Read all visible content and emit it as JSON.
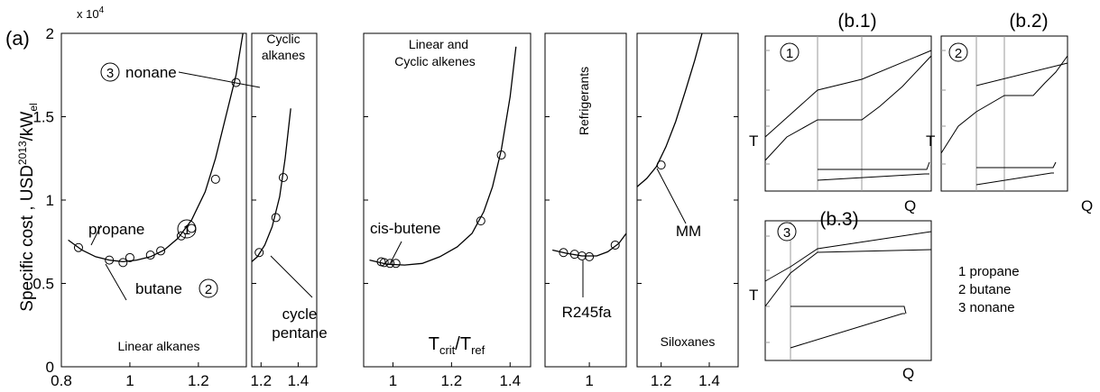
{
  "chart_data": [
    {
      "type": "line",
      "panel_label": "(a)",
      "ylabel": "Specific cost , USD",
      "ylabel_sup": "2013",
      "ylabel_suffix": "/kW",
      "ylabel_sub": "el",
      "y_multiplier": "x 10",
      "y_multiplier_exp": "4",
      "xlabel": "T",
      "xlabel_sub1": "crit",
      "xlabel_mid": "/T",
      "xlabel_sub2": "ref",
      "ylim": [
        0,
        2
      ],
      "yticks": [
        "0",
        "0.5",
        "1",
        "1.5",
        "2"
      ],
      "subpanels": [
        {
          "name": "Linear alkanes",
          "xlim": [
            0.8,
            1.34
          ],
          "xticks": [
            "0.8",
            "1",
            "1.2"
          ],
          "curve": [
            [
              0.82,
              0.76
            ],
            [
              0.86,
              0.7
            ],
            [
              0.9,
              0.66
            ],
            [
              0.94,
              0.64
            ],
            [
              0.98,
              0.63
            ],
            [
              1.02,
              0.64
            ],
            [
              1.06,
              0.66
            ],
            [
              1.1,
              0.7
            ],
            [
              1.14,
              0.77
            ],
            [
              1.18,
              0.88
            ],
            [
              1.22,
              1.05
            ],
            [
              1.25,
              1.25
            ],
            [
              1.28,
              1.5
            ],
            [
              1.31,
              1.75
            ],
            [
              1.33,
              2.0
            ]
          ],
          "points": [
            [
              0.85,
              0.715
            ],
            [
              0.94,
              0.64
            ],
            [
              0.98,
              0.625
            ],
            [
              1.0,
              0.655
            ],
            [
              1.06,
              0.67
            ],
            [
              1.09,
              0.695
            ],
            [
              1.15,
              0.785
            ],
            [
              1.18,
              0.83
            ],
            [
              1.25,
              1.125
            ],
            [
              1.31,
              1.705
            ]
          ],
          "annotations": [
            "propane",
            "butane",
            "nonane"
          ],
          "markers": [
            "1",
            "2",
            "3"
          ]
        },
        {
          "name": "Cyclic alkanes",
          "name_lines": [
            "Cyclic",
            "alkanes"
          ],
          "xlim": [
            1.15,
            1.5
          ],
          "xticks": [
            "1.2",
            "1.4"
          ],
          "curve": [
            [
              1.15,
              0.63
            ],
            [
              1.18,
              0.66
            ],
            [
              1.22,
              0.73
            ],
            [
              1.26,
              0.84
            ],
            [
              1.3,
              1.02
            ],
            [
              1.33,
              1.25
            ],
            [
              1.36,
              1.55
            ]
          ],
          "points": [
            [
              1.19,
              0.685
            ],
            [
              1.28,
              0.895
            ],
            [
              1.32,
              1.135
            ]
          ],
          "annotations": [
            "cycle",
            "pentane"
          ]
        },
        {
          "name": "Linear and Cyclic alkenes",
          "name_lines": [
            "Linear  and",
            "Cyclic alkenes"
          ],
          "xlim": [
            0.9,
            1.47
          ],
          "xticks": [
            "1",
            "1.2",
            "1.4"
          ],
          "curve": [
            [
              0.92,
              0.64
            ],
            [
              0.98,
              0.615
            ],
            [
              1.04,
              0.61
            ],
            [
              1.1,
              0.62
            ],
            [
              1.16,
              0.66
            ],
            [
              1.22,
              0.72
            ],
            [
              1.27,
              0.8
            ],
            [
              1.31,
              0.93
            ],
            [
              1.34,
              1.08
            ],
            [
              1.37,
              1.3
            ],
            [
              1.4,
              1.62
            ],
            [
              1.42,
              1.92
            ]
          ],
          "points": [
            [
              0.96,
              0.63
            ],
            [
              0.97,
              0.625
            ],
            [
              0.99,
              0.62
            ],
            [
              1.01,
              0.62
            ],
            [
              1.3,
              0.875
            ],
            [
              1.37,
              1.27
            ]
          ],
          "annotations": [
            "cis-butene"
          ]
        },
        {
          "name": "Refrigerants",
          "xlim": [
            0.88,
            1.1
          ],
          "xticks": [
            "1"
          ],
          "curve": [
            [
              0.9,
              0.7
            ],
            [
              0.94,
              0.68
            ],
            [
              0.98,
              0.665
            ],
            [
              1.02,
              0.665
            ],
            [
              1.05,
              0.69
            ],
            [
              1.08,
              0.74
            ],
            [
              1.1,
              0.8
            ]
          ],
          "points": [
            [
              0.93,
              0.685
            ],
            [
              0.96,
              0.675
            ],
            [
              0.98,
              0.665
            ],
            [
              1.0,
              0.66
            ],
            [
              1.07,
              0.73
            ]
          ],
          "annotations": [
            "R245fa"
          ]
        },
        {
          "name": "Siloxanes",
          "xlim": [
            1.1,
            1.52
          ],
          "xticks": [
            "1.2",
            "1.4"
          ],
          "curve": [
            [
              1.1,
              1.08
            ],
            [
              1.14,
              1.13
            ],
            [
              1.18,
              1.2
            ],
            [
              1.22,
              1.32
            ],
            [
              1.26,
              1.47
            ],
            [
              1.3,
              1.65
            ],
            [
              1.34,
              1.84
            ],
            [
              1.37,
              2.0
            ]
          ],
          "points": [
            [
              1.2,
              1.21
            ]
          ],
          "annotations": [
            "MM"
          ]
        }
      ]
    },
    {
      "type": "line",
      "panel_label": "(b.1)",
      "marker": "1",
      "xlabel": "Q",
      "ylabel": "T"
    },
    {
      "type": "line",
      "panel_label": "(b.2)",
      "marker": "2",
      "xlabel": "Q",
      "ylabel": "T"
    },
    {
      "type": "line",
      "panel_label": "(b.3)",
      "marker": "3",
      "xlabel": "Q",
      "ylabel": "T"
    }
  ],
  "legend": [
    "1 propane",
    "2 butane",
    "3 nonane"
  ]
}
